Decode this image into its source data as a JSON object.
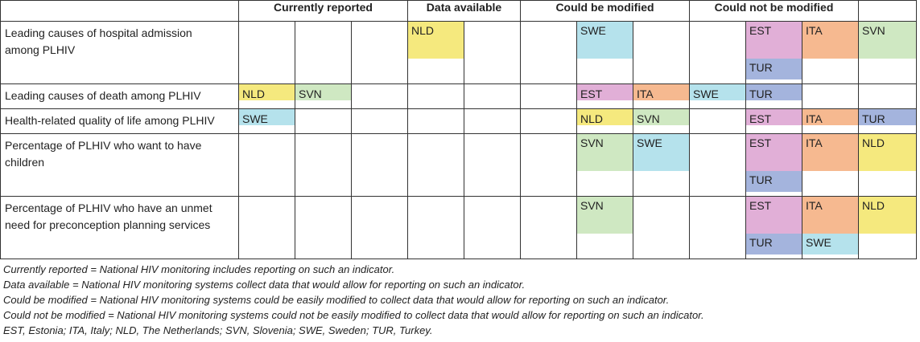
{
  "colors": {
    "NLD": "#f5e97e",
    "SWE": "#b5e2ec",
    "SVN": "#cfe8c2",
    "EST": "#e1afd7",
    "ITA": "#f6b990",
    "TUR": "#a4b4dd"
  },
  "headers": {
    "currently_reported": "Currently reported",
    "data_available": "Data available",
    "could_be_modified": "Could be modified",
    "could_not_be_modified": "Could not be modified"
  },
  "rows": [
    {
      "label_lines": [
        "Leading causes of hospital admission",
        "among PLHIV"
      ],
      "cells": [
        [
          "",
          ""
        ],
        [
          "",
          ""
        ],
        [
          "",
          ""
        ],
        [
          "NLD",
          ""
        ],
        [
          "",
          ""
        ],
        [
          "",
          ""
        ],
        [
          "SWE",
          ""
        ],
        [
          "",
          ""
        ],
        [
          "",
          ""
        ],
        [
          "EST",
          "TUR"
        ],
        [
          "ITA",
          ""
        ],
        [
          "SVN",
          ""
        ]
      ]
    },
    {
      "label_lines": [
        "Leading causes of death among PLHIV"
      ],
      "cells": [
        [
          "NLD"
        ],
        [
          "SVN"
        ],
        [
          ""
        ],
        [
          ""
        ],
        [
          ""
        ],
        [
          ""
        ],
        [
          "EST"
        ],
        [
          "ITA"
        ],
        [
          "SWE"
        ],
        [
          "TUR"
        ],
        [
          ""
        ],
        [
          ""
        ]
      ]
    },
    {
      "label_lines": [
        "Health-related quality of life among PLHIV"
      ],
      "cells": [
        [
          "SWE"
        ],
        [
          ""
        ],
        [
          ""
        ],
        [
          ""
        ],
        [
          ""
        ],
        [
          ""
        ],
        [
          "NLD"
        ],
        [
          "SVN"
        ],
        [
          ""
        ],
        [
          "EST"
        ],
        [
          "ITA"
        ],
        [
          "TUR"
        ]
      ]
    },
    {
      "label_lines": [
        "Percentage of PLHIV who want to have",
        "children"
      ],
      "cells": [
        [
          "",
          ""
        ],
        [
          "",
          ""
        ],
        [
          "",
          ""
        ],
        [
          "",
          ""
        ],
        [
          "",
          ""
        ],
        [
          "",
          ""
        ],
        [
          "SVN",
          ""
        ],
        [
          "SWE",
          ""
        ],
        [
          "",
          ""
        ],
        [
          "EST",
          "TUR"
        ],
        [
          "ITA",
          ""
        ],
        [
          "NLD",
          ""
        ]
      ]
    },
    {
      "label_lines": [
        "Percentage of PLHIV who have an unmet",
        "need for preconception planning services"
      ],
      "cells": [
        [
          "",
          ""
        ],
        [
          "",
          ""
        ],
        [
          "",
          ""
        ],
        [
          "",
          ""
        ],
        [
          "",
          ""
        ],
        [
          "",
          ""
        ],
        [
          "SVN",
          ""
        ],
        [
          "",
          ""
        ],
        [
          "",
          ""
        ],
        [
          "EST",
          "TUR"
        ],
        [
          "ITA",
          "SWE"
        ],
        [
          "NLD",
          ""
        ]
      ]
    }
  ],
  "notes": [
    "Currently reported = National HIV monitoring includes reporting on such an indicator.",
    "Data available = National HIV monitoring systems collect data that would allow for reporting on such an indicator.",
    "Could be modified = National HIV monitoring systems could be easily modified to collect data that would allow for reporting on such an indicator.",
    "Could not be modified = National HIV monitoring systems could not be easily modified to collect data that would allow for reporting on such an indicator.",
    "EST, Estonia; ITA, Italy; NLD, The Netherlands; SVN, Slovenia; SWE, Sweden; TUR, Turkey."
  ]
}
